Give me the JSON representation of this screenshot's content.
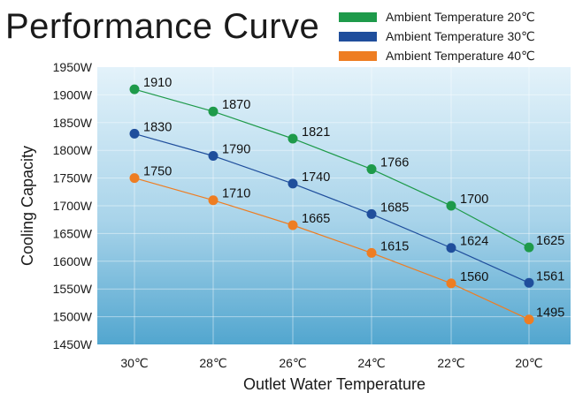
{
  "chart_data": {
    "type": "line",
    "title": "Performance Curve",
    "xlabel": "Outlet Water Temperature",
    "ylabel": "Cooling Capacity",
    "categories": [
      "30℃",
      "28℃",
      "26℃",
      "24℃",
      "22℃",
      "20℃"
    ],
    "ylim": [
      1450,
      1950
    ],
    "yticks": [
      "1450W",
      "1500W",
      "1550W",
      "1600W",
      "1650W",
      "1700W",
      "1750W",
      "1800W",
      "1850W",
      "1900W",
      "1950W"
    ],
    "grid": true,
    "legend_position": "top-right",
    "series": [
      {
        "name": "Ambient Temperature 20℃",
        "color": "#1e9a4a",
        "values": [
          1910,
          1870,
          1821,
          1766,
          1700,
          1625
        ]
      },
      {
        "name": "Ambient Temperature 30℃",
        "color": "#1f4e9c",
        "values": [
          1830,
          1790,
          1740,
          1685,
          1624,
          1561
        ]
      },
      {
        "name": "Ambient Temperature 40℃",
        "color": "#ee7d22",
        "values": [
          1750,
          1710,
          1665,
          1615,
          1560,
          1495
        ]
      }
    ]
  }
}
